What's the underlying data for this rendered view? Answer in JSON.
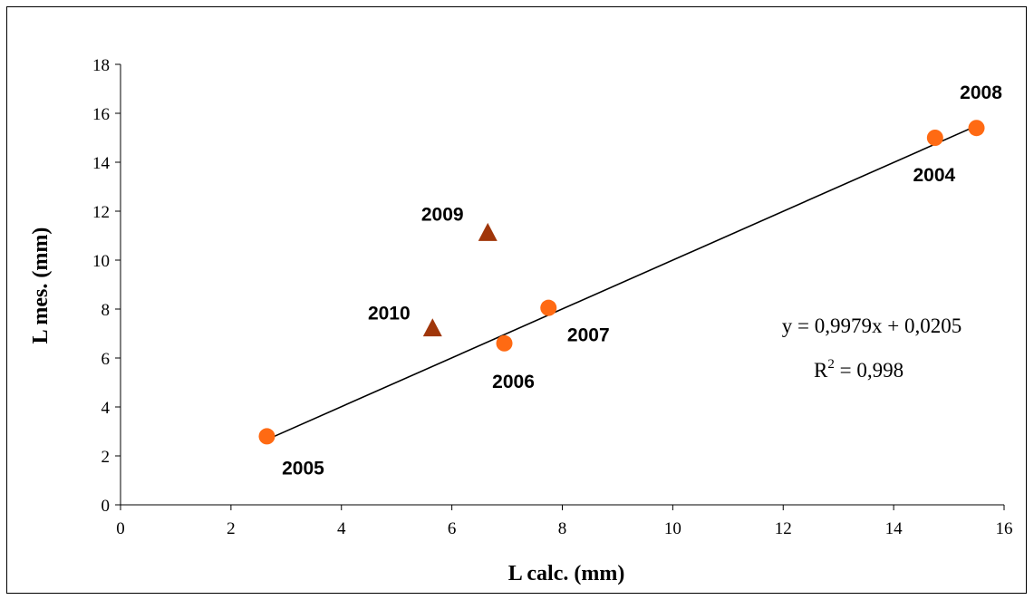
{
  "chart_data": {
    "type": "scatter",
    "xlabel": "L calc. (mm)",
    "ylabel": "L mes. (mm)",
    "xlim": [
      0,
      16
    ],
    "ylim": [
      0,
      18
    ],
    "xticks": [
      "0",
      "2",
      "4",
      "6",
      "8",
      "10",
      "12",
      "14",
      "16"
    ],
    "yticks": [
      "0",
      "2",
      "4",
      "6",
      "8",
      "10",
      "12",
      "14",
      "16",
      "18"
    ],
    "grid": false,
    "series": [
      {
        "marker": "circle",
        "color": "#ff6a13",
        "points": [
          {
            "label": "2004",
            "x": 14.75,
            "y": 15.0
          },
          {
            "label": "2005",
            "x": 2.65,
            "y": 2.8
          },
          {
            "label": "2006",
            "x": 6.95,
            "y": 6.6
          },
          {
            "label": "2007",
            "x": 7.75,
            "y": 8.05
          },
          {
            "label": "2008",
            "x": 15.5,
            "y": 15.4
          }
        ]
      },
      {
        "marker": "triangle",
        "color": "#a0360a",
        "points": [
          {
            "label": "2009",
            "x": 6.65,
            "y": 11.1
          },
          {
            "label": "2010",
            "x": 5.65,
            "y": 7.2
          }
        ]
      }
    ],
    "trendline": {
      "slope": 0.9979,
      "intercept": 0.0205,
      "x_range": [
        2.65,
        15.5
      ],
      "color": "#000000",
      "equation": "y = 0,9979x + 0,0205",
      "r2_label": "R",
      "r2_sup": "2",
      "r2_value": " = 0,998"
    }
  }
}
